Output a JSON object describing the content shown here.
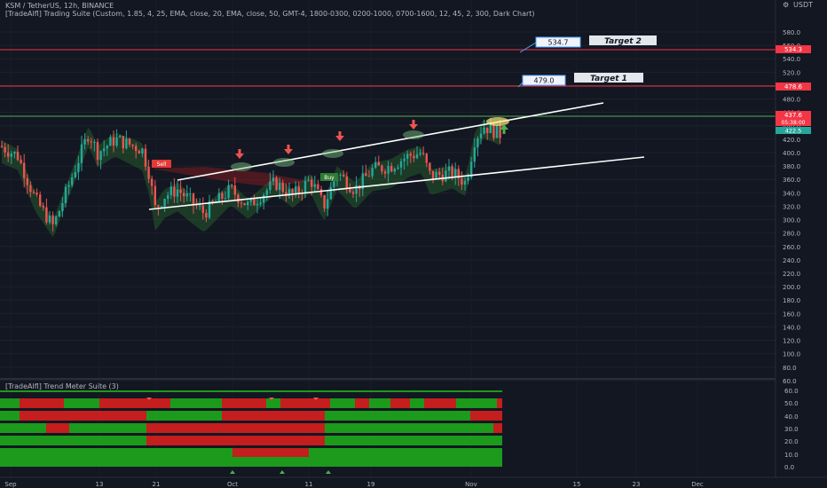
{
  "header": {
    "line1": "KSM / TetherUS, 12h, BINANCE",
    "line2": "[TradeAlfl] Trading Suite (Custom, 1.85, 4, 25, EMA, close, 20, EMA, close, 50, GMT-4, 1800-0300, 0200-1000, 0700-1600, 12, 45, 2, 300, Dark Chart)",
    "currency": "USDT",
    "scale_icon": "gear-icon"
  },
  "colors": {
    "background": "#131722",
    "up": "#26a69a",
    "down": "#ef5350",
    "target_line": "#f23645",
    "breakout_line": "#4caf50",
    "channel": "#ffffff",
    "meter_green": "#1c9a1c",
    "meter_red": "#c41e1e"
  },
  "targets": [
    {
      "name": "Target 1",
      "value": "479.0",
      "level_label": "478.6"
    },
    {
      "name": "Target 2",
      "value": "534.7",
      "level_label": "534.3"
    }
  ],
  "price_tags": [
    {
      "value": "437.6"
    },
    {
      "value": "05:38:00"
    },
    {
      "value": "422.5"
    }
  ],
  "sell_tag": "Sell",
  "buy_tag": "Buy",
  "price_axis": [
    "580.0",
    "560.0",
    "540.0",
    "520.0",
    "500.0",
    "480.0",
    "460.0",
    "440.0",
    "420.0",
    "400.0",
    "380.0",
    "360.0",
    "340.0",
    "320.0",
    "300.0",
    "280.0",
    "260.0",
    "240.0",
    "220.0",
    "200.0",
    "180.0",
    "160.0",
    "140.0",
    "120.0",
    "100.0",
    "80.0",
    "60.0"
  ],
  "meter_axis": [
    "60.0",
    "50.0",
    "40.0",
    "30.0",
    "20.0",
    "10.0",
    "0.0"
  ],
  "time_axis": [
    "Sep",
    "13",
    "21",
    "Oct",
    "11",
    "19",
    "Nov",
    "15",
    "23",
    "Dec"
  ],
  "pane_title": "[TradeAlfl] Trend Meter Suite (3)",
  "chart_data": {
    "type": "candlestick",
    "symbol": "KSM / TetherUS",
    "interval": "12h",
    "exchange": "BINANCE",
    "ylim": [
      40,
      600
    ],
    "annotations": [
      "Target 1",
      "Target 2"
    ],
    "horizontal_levels": [
      534.3,
      478.6,
      437.6
    ]
  }
}
